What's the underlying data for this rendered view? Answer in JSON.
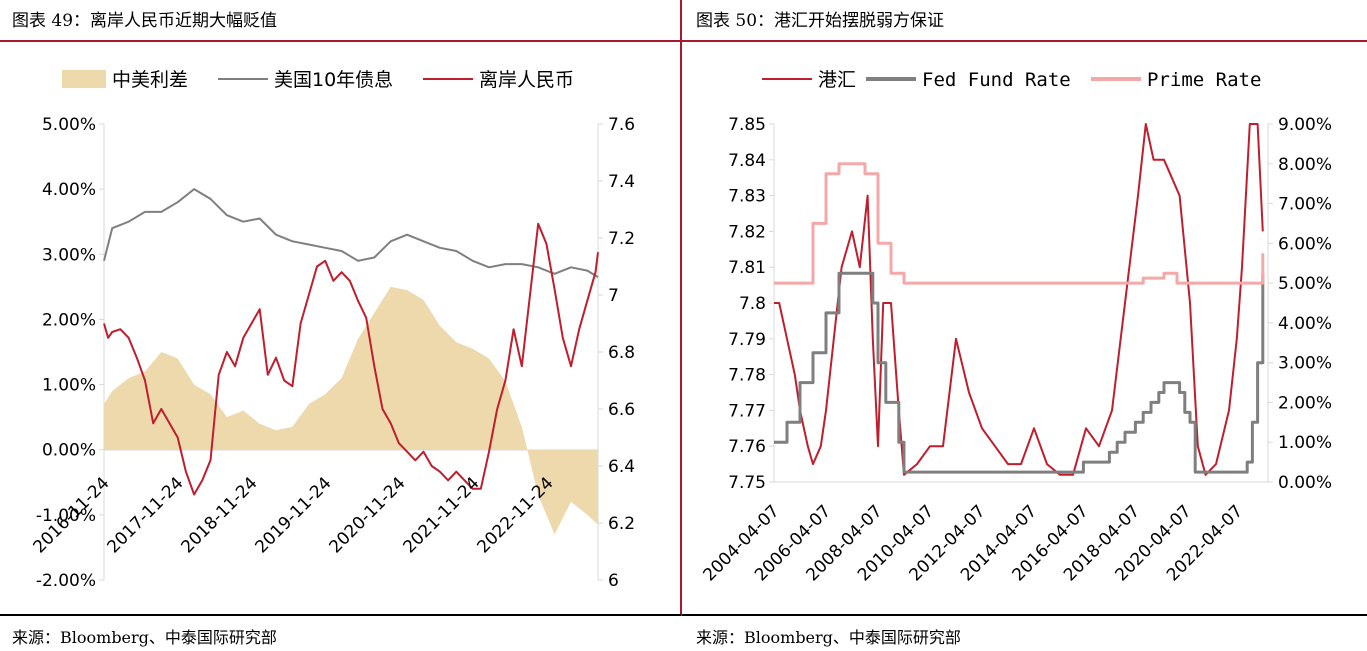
{
  "left": {
    "title": "图表 49：离岸人民币近期大幅贬值",
    "source": "来源：Bloomberg、中泰国际研究部",
    "chart_data": {
      "type": "line",
      "title": "",
      "legend": [
        "中美利差",
        "美国10年债息",
        "离岸人民币"
      ],
      "legend_position": "top",
      "x_ticks": [
        "2016-11-24",
        "2017-11-24",
        "2018-11-24",
        "2019-11-24",
        "2020-11-24",
        "2021-11-24",
        "2022-11-24"
      ],
      "y_left": {
        "ticks": [
          "5.00%",
          "4.00%",
          "3.00%",
          "2.00%",
          "1.00%",
          "0.00%",
          "-1.00%",
          "-2.00%"
        ],
        "range": [
          -2.0,
          5.0
        ]
      },
      "y_right": {
        "ticks": [
          "7.6",
          "7.4",
          "7.2",
          "7",
          "6.8",
          "6.6",
          "6.4",
          "6.2",
          "6"
        ],
        "range": [
          6.0,
          7.6
        ]
      },
      "series": [
        {
          "name": "中美利差",
          "kind": "area",
          "axis": "left",
          "color": "#eed9ad",
          "x": [
            2016.9,
            2017.0,
            2017.2,
            2017.4,
            2017.6,
            2017.8,
            2018.0,
            2018.2,
            2018.4,
            2018.6,
            2018.8,
            2019.0,
            2019.2,
            2019.4,
            2019.6,
            2019.8,
            2020.0,
            2020.2,
            2020.4,
            2020.6,
            2020.8,
            2021.0,
            2021.2,
            2021.4,
            2021.6,
            2021.8,
            2022.0,
            2022.2,
            2022.4,
            2022.6,
            2022.8,
            2022.93
          ],
          "values": [
            0.7,
            0.9,
            1.1,
            1.2,
            1.5,
            1.4,
            1.0,
            0.85,
            0.5,
            0.6,
            0.4,
            0.3,
            0.35,
            0.7,
            0.85,
            1.1,
            1.7,
            2.1,
            2.5,
            2.45,
            2.3,
            1.9,
            1.65,
            1.55,
            1.4,
            1.05,
            0.35,
            -0.7,
            -1.3,
            -0.8,
            -1.0,
            -1.15
          ]
        },
        {
          "name": "美国10年债息",
          "kind": "line",
          "axis": "left",
          "color": "#7f7f7f",
          "x": [
            2016.9,
            2017.0,
            2017.2,
            2017.4,
            2017.6,
            2017.8,
            2018.0,
            2018.2,
            2018.4,
            2018.6,
            2018.8,
            2019.0,
            2019.2,
            2019.4,
            2019.6,
            2019.8,
            2020.0,
            2020.2,
            2020.4,
            2020.6,
            2020.8,
            2021.0,
            2021.2,
            2021.4,
            2021.6,
            2021.8,
            2022.0,
            2022.2,
            2022.4,
            2022.6,
            2022.8,
            2022.93
          ],
          "values": [
            2.9,
            3.4,
            3.5,
            3.65,
            3.65,
            3.8,
            4.0,
            3.85,
            3.6,
            3.5,
            3.55,
            3.3,
            3.2,
            3.15,
            3.1,
            3.05,
            2.9,
            2.95,
            3.2,
            3.3,
            3.2,
            3.1,
            3.05,
            2.9,
            2.8,
            2.85,
            2.85,
            2.8,
            2.7,
            2.8,
            2.75,
            2.65
          ]
        },
        {
          "name": "离岸人民币",
          "kind": "line",
          "axis": "right",
          "color": "#be1e2d",
          "x": [
            2016.9,
            2016.95,
            2017.0,
            2017.1,
            2017.2,
            2017.3,
            2017.4,
            2017.5,
            2017.6,
            2017.7,
            2017.8,
            2017.9,
            2018.0,
            2018.1,
            2018.2,
            2018.3,
            2018.4,
            2018.5,
            2018.6,
            2018.7,
            2018.8,
            2018.9,
            2019.0,
            2019.1,
            2019.2,
            2019.3,
            2019.4,
            2019.5,
            2019.6,
            2019.7,
            2019.8,
            2019.9,
            2020.0,
            2020.1,
            2020.2,
            2020.3,
            2020.4,
            2020.5,
            2020.6,
            2020.7,
            2020.8,
            2020.9,
            2021.0,
            2021.1,
            2021.2,
            2021.3,
            2021.4,
            2021.5,
            2021.6,
            2021.7,
            2021.8,
            2021.9,
            2022.0,
            2022.1,
            2022.2,
            2022.3,
            2022.4,
            2022.5,
            2022.6,
            2022.7,
            2022.8,
            2022.9,
            2022.93
          ],
          "values": [
            6.9,
            6.85,
            6.87,
            6.88,
            6.85,
            6.78,
            6.7,
            6.55,
            6.6,
            6.55,
            6.5,
            6.38,
            6.3,
            6.35,
            6.42,
            6.72,
            6.8,
            6.75,
            6.85,
            6.9,
            6.95,
            6.72,
            6.78,
            6.7,
            6.68,
            6.9,
            7.0,
            7.1,
            7.12,
            7.05,
            7.08,
            7.05,
            6.98,
            6.92,
            6.75,
            6.6,
            6.55,
            6.48,
            6.45,
            6.42,
            6.45,
            6.4,
            6.38,
            6.35,
            6.38,
            6.35,
            6.32,
            6.32,
            6.45,
            6.6,
            6.7,
            6.88,
            6.75,
            7.0,
            7.25,
            7.18,
            7.02,
            6.85,
            6.75,
            6.88,
            6.98,
            7.08,
            7.15
          ]
        }
      ]
    }
  },
  "right": {
    "title": "图表 50：港汇开始摆脱弱方保证",
    "source": "来源：Bloomberg、中泰国际研究部",
    "chart_data": {
      "type": "line",
      "title": "",
      "legend": [
        "港汇",
        "Fed Fund Rate",
        "Prime Rate"
      ],
      "legend_position": "top",
      "x_ticks": [
        "2004-04-07",
        "2006-04-07",
        "2008-04-07",
        "2010-04-07",
        "2012-04-07",
        "2014-04-07",
        "2016-04-07",
        "2018-04-07",
        "2020-04-07",
        "2022-04-07"
      ],
      "y_left": {
        "ticks": [
          "7.85",
          "7.84",
          "7.83",
          "7.82",
          "7.81",
          "7.8",
          "7.79",
          "7.78",
          "7.77",
          "7.76",
          "7.75"
        ],
        "range": [
          7.75,
          7.85
        ]
      },
      "y_right": {
        "ticks": [
          "9.00%",
          "8.00%",
          "7.00%",
          "6.00%",
          "5.00%",
          "4.00%",
          "3.00%",
          "2.00%",
          "1.00%",
          "0.00%"
        ],
        "range": [
          0,
          9
        ]
      },
      "series": [
        {
          "name": "港汇",
          "kind": "line",
          "axis": "left",
          "color": "#be1e2d",
          "x": [
            2004.0,
            2004.2,
            2004.5,
            2004.8,
            2005.0,
            2005.3,
            2005.5,
            2005.8,
            2006.0,
            2006.3,
            2006.6,
            2007.0,
            2007.3,
            2007.6,
            2007.8,
            2008.0,
            2008.2,
            2008.5,
            2008.8,
            2009.0,
            2009.5,
            2010.0,
            2010.5,
            2011.0,
            2011.5,
            2012.0,
            2012.5,
            2013.0,
            2013.5,
            2014.0,
            2014.5,
            2015.0,
            2015.5,
            2016.0,
            2016.5,
            2017.0,
            2017.5,
            2018.0,
            2018.3,
            2018.6,
            2019.0,
            2019.3,
            2019.6,
            2020.0,
            2020.3,
            2020.6,
            2021.0,
            2021.5,
            2021.8,
            2022.0,
            2022.3,
            2022.6,
            2022.8
          ],
          "values": [
            7.8,
            7.8,
            7.79,
            7.78,
            7.77,
            7.76,
            7.755,
            7.76,
            7.77,
            7.79,
            7.81,
            7.82,
            7.81,
            7.83,
            7.79,
            7.76,
            7.8,
            7.8,
            7.77,
            7.752,
            7.755,
            7.76,
            7.76,
            7.79,
            7.775,
            7.765,
            7.76,
            7.755,
            7.755,
            7.765,
            7.755,
            7.752,
            7.752,
            7.765,
            7.76,
            7.77,
            7.8,
            7.83,
            7.85,
            7.84,
            7.84,
            7.835,
            7.83,
            7.8,
            7.76,
            7.752,
            7.755,
            7.77,
            7.79,
            7.81,
            7.85,
            7.85,
            7.82
          ]
        },
        {
          "name": "Fed Fund Rate",
          "kind": "step",
          "axis": "right",
          "color": "#7f7f7f",
          "x": [
            2004.0,
            2004.5,
            2005.0,
            2005.5,
            2006.0,
            2006.5,
            2007.5,
            2007.8,
            2008.0,
            2008.3,
            2008.8,
            2009.0,
            2015.9,
            2016.9,
            2017.2,
            2017.5,
            2017.9,
            2018.2,
            2018.5,
            2018.8,
            2019.0,
            2019.6,
            2019.8,
            2020.0,
            2020.2,
            2022.2,
            2022.4,
            2022.6,
            2022.8
          ],
          "values": [
            1.0,
            1.5,
            2.5,
            3.25,
            4.25,
            5.25,
            5.25,
            4.5,
            3.0,
            2.0,
            1.0,
            0.25,
            0.5,
            0.75,
            1.0,
            1.25,
            1.5,
            1.75,
            2.0,
            2.25,
            2.5,
            2.25,
            1.75,
            1.5,
            0.25,
            0.5,
            1.5,
            3.0,
            5.25
          ]
        },
        {
          "name": "Prime Rate",
          "kind": "step",
          "axis": "right",
          "color": "#f4a8a8",
          "x": [
            2004.0,
            2005.0,
            2005.5,
            2006.0,
            2006.5,
            2007.5,
            2008.0,
            2008.5,
            2009.0,
            2018.2,
            2019.0,
            2019.5,
            2022.5,
            2022.8
          ],
          "values": [
            5.0,
            5.0,
            6.5,
            7.75,
            8.0,
            7.75,
            6.0,
            5.25,
            5.0,
            5.125,
            5.25,
            5.0,
            5.0,
            5.75
          ]
        }
      ]
    }
  }
}
